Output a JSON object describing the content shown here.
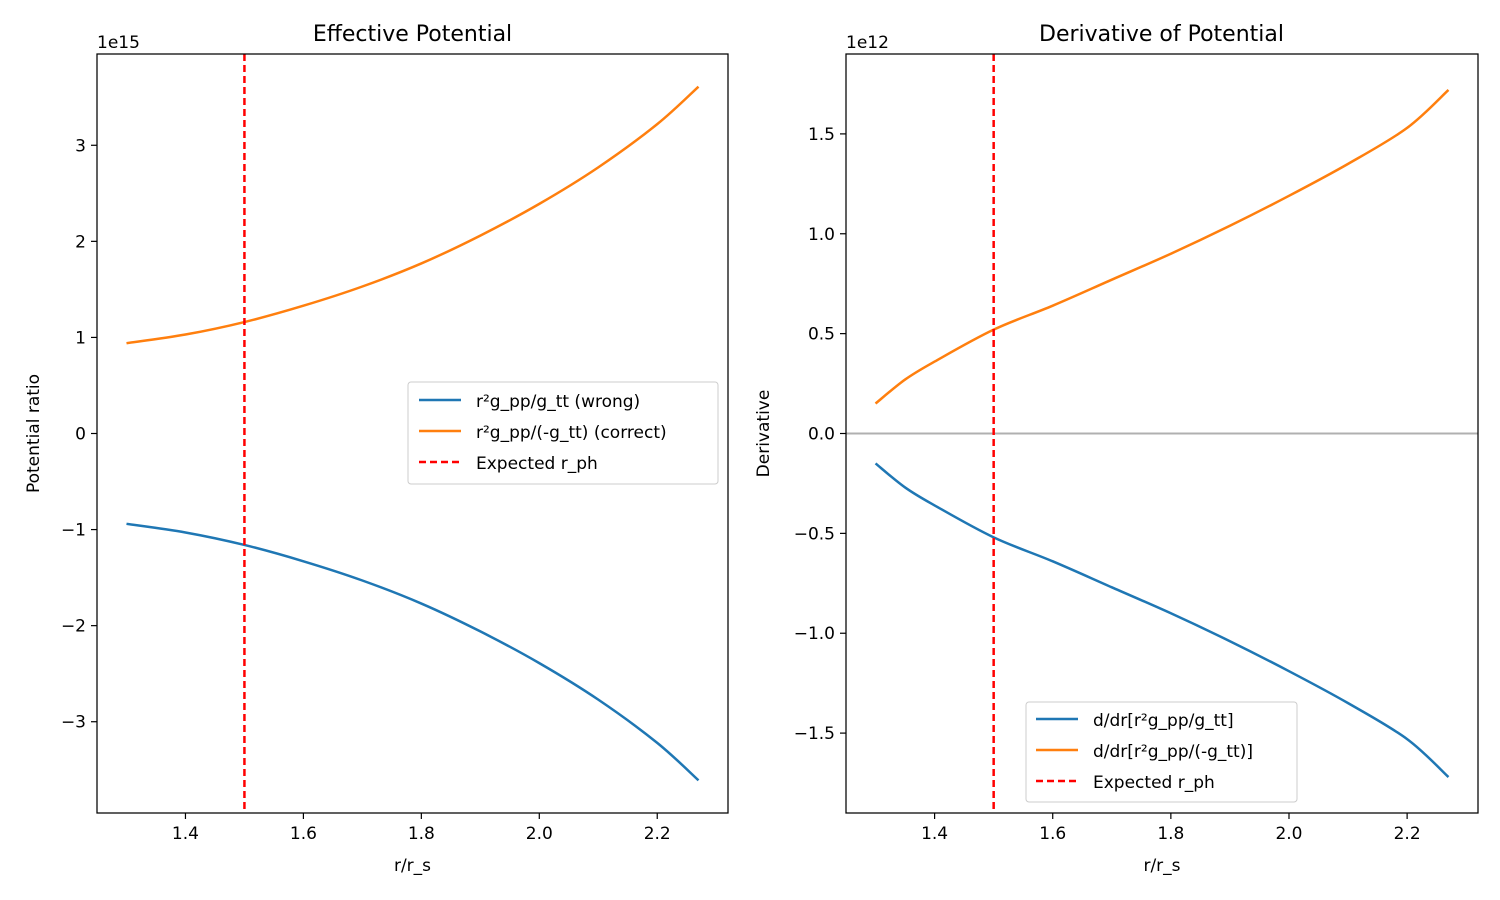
{
  "chart_data": [
    {
      "type": "line",
      "title": "Effective Potential",
      "xlabel": "r/r_s",
      "ylabel": "Potential ratio",
      "offset_label": "1e15",
      "y_scale_factor": 1000000000000000.0,
      "xlim": [
        1.25,
        2.32
      ],
      "ylim": [
        -3.95,
        3.95
      ],
      "xticks": [
        1.4,
        1.6,
        1.8,
        2.0,
        2.2
      ],
      "xtick_labels": [
        "1.4",
        "1.6",
        "1.8",
        "2.0",
        "2.2"
      ],
      "yticks": [
        -3,
        -2,
        -1,
        0,
        1,
        2,
        3
      ],
      "ytick_labels": [
        "−3",
        "−2",
        "−1",
        "0",
        "1",
        "2",
        "3"
      ],
      "legend_position": "center-right",
      "series": [
        {
          "name": "r²g_pp/g_tt (wrong)",
          "color": "#1f77b4",
          "style": "solid",
          "x": [
            1.3,
            1.4,
            1.5,
            1.6,
            1.7,
            1.8,
            1.9,
            2.0,
            2.1,
            2.2,
            2.27
          ],
          "y": [
            -0.94,
            -1.03,
            -1.16,
            -1.33,
            -1.53,
            -1.77,
            -2.06,
            -2.39,
            -2.77,
            -3.22,
            -3.61
          ]
        },
        {
          "name": "r²g_pp/(-g_tt) (correct)",
          "color": "#ff7f0e",
          "style": "solid",
          "x": [
            1.3,
            1.4,
            1.5,
            1.6,
            1.7,
            1.8,
            1.9,
            2.0,
            2.1,
            2.2,
            2.27
          ],
          "y": [
            0.94,
            1.03,
            1.16,
            1.33,
            1.53,
            1.77,
            2.06,
            2.39,
            2.77,
            3.22,
            3.61
          ]
        }
      ],
      "vlines": [
        {
          "name": "Expected r_ph",
          "x": 1.5,
          "color": "#ff0000",
          "style": "dashed"
        }
      ]
    },
    {
      "type": "line",
      "title": "Derivative of Potential",
      "xlabel": "r/r_s",
      "ylabel": "Derivative",
      "offset_label": "1e12",
      "y_scale_factor": 1000000000000.0,
      "xlim": [
        1.25,
        2.32
      ],
      "ylim": [
        -1.9,
        1.9
      ],
      "xticks": [
        1.4,
        1.6,
        1.8,
        2.0,
        2.2
      ],
      "xtick_labels": [
        "1.4",
        "1.6",
        "1.8",
        "2.0",
        "2.2"
      ],
      "yticks": [
        -1.5,
        -1.0,
        -0.5,
        0.0,
        0.5,
        1.0,
        1.5
      ],
      "ytick_labels": [
        "−1.5",
        "−1.0",
        "−0.5",
        "0.0",
        "0.5",
        "1.0",
        "1.5"
      ],
      "legend_position": "lower-center",
      "series": [
        {
          "name": "d/dr[r²g_pp/g_tt]",
          "color": "#1f77b4",
          "style": "solid",
          "x": [
            1.3,
            1.35,
            1.4,
            1.5,
            1.6,
            1.7,
            1.8,
            1.9,
            2.0,
            2.1,
            2.2,
            2.27
          ],
          "y": [
            -0.15,
            -0.27,
            -0.36,
            -0.52,
            -0.64,
            -0.77,
            -0.9,
            -1.04,
            -1.19,
            -1.35,
            -1.53,
            -1.72
          ]
        },
        {
          "name": "d/dr[r²g_pp/(-g_tt)]",
          "color": "#ff7f0e",
          "style": "solid",
          "x": [
            1.3,
            1.35,
            1.4,
            1.5,
            1.6,
            1.7,
            1.8,
            1.9,
            2.0,
            2.1,
            2.2,
            2.27
          ],
          "y": [
            0.15,
            0.27,
            0.36,
            0.52,
            0.64,
            0.77,
            0.9,
            1.04,
            1.19,
            1.35,
            1.53,
            1.72
          ]
        }
      ],
      "hlines": [
        {
          "y": 0.0,
          "color": "#b0b0b0",
          "style": "solid"
        }
      ],
      "vlines": [
        {
          "name": "Expected r_ph",
          "x": 1.5,
          "color": "#ff0000",
          "style": "dashed"
        }
      ]
    }
  ]
}
